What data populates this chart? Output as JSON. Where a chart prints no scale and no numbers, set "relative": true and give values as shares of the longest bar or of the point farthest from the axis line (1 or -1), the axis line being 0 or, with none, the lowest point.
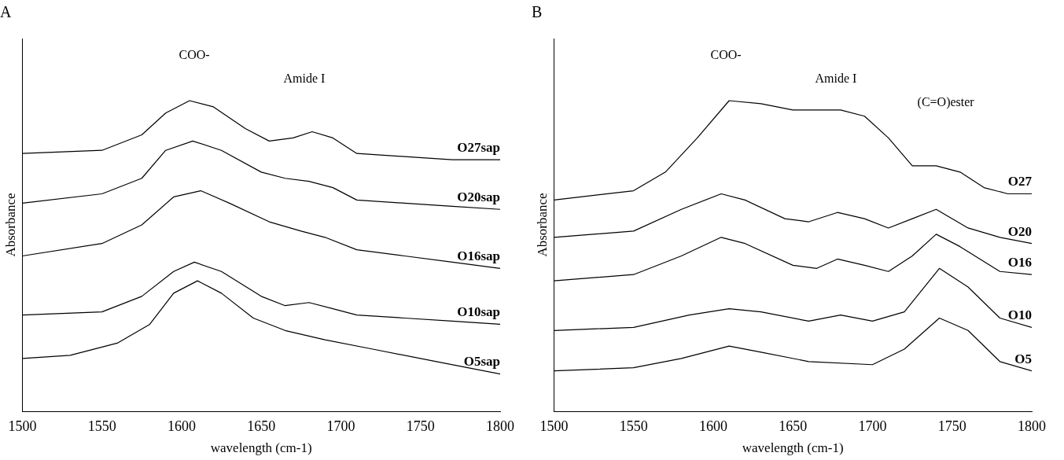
{
  "chart_data": [
    {
      "type": "line",
      "title": "A",
      "xlabel": "wavelength (cm-1)",
      "ylabel": "Absorbance",
      "relative": true,
      "xlim": [
        1500,
        1800
      ],
      "xticks": [
        1500,
        1550,
        1600,
        1650,
        1700,
        1750,
        1800
      ],
      "grid": false,
      "legend": false,
      "marker": "none",
      "line_style": "solid",
      "annotations": [
        "COO-",
        "Amide I"
      ],
      "series": [
        {
          "name": "O27sap",
          "color": "#000000",
          "x": [
            1500,
            1550,
            1575,
            1590,
            1605,
            1620,
            1640,
            1655,
            1670,
            1682,
            1695,
            1710,
            1740,
            1770,
            1800
          ],
          "values": [
            0.83,
            0.84,
            0.89,
            0.96,
            1.0,
            0.98,
            0.91,
            0.87,
            0.88,
            0.9,
            0.88,
            0.83,
            0.82,
            0.81,
            0.81
          ]
        },
        {
          "name": "O20sap",
          "color": "#000000",
          "x": [
            1500,
            1550,
            1575,
            1590,
            1607,
            1625,
            1650,
            1665,
            1680,
            1695,
            1710,
            1740,
            1770,
            1800
          ],
          "values": [
            0.67,
            0.7,
            0.75,
            0.84,
            0.87,
            0.84,
            0.77,
            0.75,
            0.74,
            0.72,
            0.68,
            0.67,
            0.66,
            0.65
          ]
        },
        {
          "name": "O16sap",
          "color": "#000000",
          "x": [
            1500,
            1550,
            1575,
            1595,
            1612,
            1630,
            1655,
            1675,
            1690,
            1710,
            1740,
            1770,
            1800
          ],
          "values": [
            0.5,
            0.54,
            0.6,
            0.69,
            0.71,
            0.67,
            0.61,
            0.58,
            0.56,
            0.52,
            0.5,
            0.48,
            0.46
          ]
        },
        {
          "name": "O10sap",
          "color": "#000000",
          "x": [
            1500,
            1550,
            1575,
            1595,
            1608,
            1625,
            1650,
            1665,
            1680,
            1695,
            1710,
            1740,
            1770,
            1800
          ],
          "values": [
            0.31,
            0.32,
            0.37,
            0.45,
            0.48,
            0.45,
            0.37,
            0.34,
            0.35,
            0.33,
            0.31,
            0.3,
            0.29,
            0.28
          ]
        },
        {
          "name": "O5sap",
          "color": "#000000",
          "x": [
            1500,
            1530,
            1560,
            1580,
            1595,
            1610,
            1625,
            1645,
            1665,
            1690,
            1720,
            1760,
            1800
          ],
          "values": [
            0.17,
            0.18,
            0.22,
            0.28,
            0.38,
            0.42,
            0.38,
            0.3,
            0.26,
            0.23,
            0.2,
            0.16,
            0.12
          ]
        }
      ]
    },
    {
      "type": "line",
      "title": "B",
      "xlabel": "wavelength (cm-1)",
      "ylabel": "Absorbance",
      "relative": true,
      "xlim": [
        1500,
        1800
      ],
      "xticks": [
        1500,
        1550,
        1600,
        1650,
        1700,
        1750,
        1800
      ],
      "grid": false,
      "legend": false,
      "marker": "none",
      "line_style": "solid",
      "annotations": [
        "COO-",
        "Amide I",
        "(C=O)ester"
      ],
      "series": [
        {
          "name": "O27",
          "color": "#000000",
          "x": [
            1500,
            1550,
            1570,
            1590,
            1610,
            1630,
            1650,
            1665,
            1680,
            1695,
            1710,
            1725,
            1740,
            1755,
            1770,
            1785,
            1800
          ],
          "values": [
            0.68,
            0.71,
            0.77,
            0.88,
            1.0,
            0.99,
            0.97,
            0.97,
            0.97,
            0.95,
            0.88,
            0.79,
            0.79,
            0.77,
            0.72,
            0.7,
            0.7
          ]
        },
        {
          "name": "O20",
          "color": "#000000",
          "x": [
            1500,
            1550,
            1580,
            1605,
            1620,
            1645,
            1660,
            1678,
            1695,
            1710,
            1725,
            1740,
            1760,
            1780,
            1800
          ],
          "values": [
            0.56,
            0.58,
            0.65,
            0.7,
            0.68,
            0.62,
            0.61,
            0.64,
            0.62,
            0.59,
            0.62,
            0.65,
            0.59,
            0.56,
            0.54
          ]
        },
        {
          "name": "O16",
          "color": "#000000",
          "x": [
            1500,
            1550,
            1580,
            1605,
            1620,
            1650,
            1665,
            1678,
            1695,
            1710,
            1725,
            1740,
            1755,
            1780,
            1800
          ],
          "values": [
            0.42,
            0.44,
            0.5,
            0.56,
            0.54,
            0.47,
            0.46,
            0.49,
            0.47,
            0.45,
            0.5,
            0.57,
            0.53,
            0.45,
            0.44
          ]
        },
        {
          "name": "O10",
          "color": "#000000",
          "x": [
            1500,
            1550,
            1585,
            1610,
            1630,
            1660,
            1680,
            1700,
            1720,
            1742,
            1760,
            1780,
            1800
          ],
          "values": [
            0.26,
            0.27,
            0.31,
            0.33,
            0.32,
            0.29,
            0.31,
            0.29,
            0.32,
            0.46,
            0.4,
            0.3,
            0.27
          ]
        },
        {
          "name": "O5",
          "color": "#000000",
          "x": [
            1500,
            1550,
            1580,
            1610,
            1630,
            1660,
            1700,
            1720,
            1742,
            1760,
            1780,
            1800
          ],
          "values": [
            0.13,
            0.14,
            0.17,
            0.21,
            0.19,
            0.16,
            0.15,
            0.2,
            0.3,
            0.26,
            0.16,
            0.13
          ]
        }
      ]
    }
  ]
}
